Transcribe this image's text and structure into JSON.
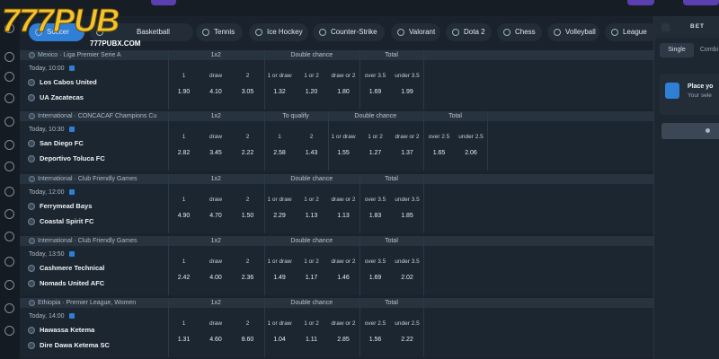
{
  "logo": {
    "title": "777PUB",
    "url": "777PUBX.COM"
  },
  "sports": [
    "Soccer",
    "Basketball",
    "Tennis",
    "Ice Hockey",
    "Counter-Strike",
    "Valorant",
    "Dota 2",
    "Chess",
    "Volleyball",
    "League"
  ],
  "betslip": {
    "title": "BET",
    "tabs": [
      "Single",
      "Combi"
    ],
    "notice_title": "Place yo",
    "notice_text": "Your sele"
  },
  "matches": [
    {
      "league": "Mexico · Liga Premier Serie A",
      "time": "Today, 10:00",
      "teams": [
        "Los Cabos United",
        "UA Zacatecas"
      ],
      "markets": [
        {
          "title": "1x2",
          "outcomes": [
            {
              "label": "1",
              "odd": "1.90"
            },
            {
              "label": "draw",
              "odd": "4.10"
            },
            {
              "label": "2",
              "odd": "3.05"
            }
          ]
        },
        {
          "title": "Double chance",
          "outcomes": [
            {
              "label": "1 or draw",
              "odd": "1.32"
            },
            {
              "label": "1 or 2",
              "odd": "1.20"
            },
            {
              "label": "draw or 2",
              "odd": "1.80"
            }
          ]
        },
        {
          "title": "Total",
          "outcomes": [
            {
              "label": "over 3.5",
              "odd": "1.69"
            },
            {
              "label": "under 3.5",
              "odd": "1.99"
            }
          ]
        }
      ]
    },
    {
      "league": "International · CONCACAF Champions Cu",
      "time": "Today, 10:30",
      "teams": [
        "San Diego FC",
        "Deportivo Toluca FC"
      ],
      "markets": [
        {
          "title": "1x2",
          "outcomes": [
            {
              "label": "1",
              "odd": "2.82"
            },
            {
              "label": "draw",
              "odd": "3.45"
            },
            {
              "label": "2",
              "odd": "2.22"
            }
          ]
        },
        {
          "title": "To qualify",
          "outcomes": [
            {
              "label": "1",
              "odd": "2.58"
            },
            {
              "label": "2",
              "odd": "1.43"
            }
          ]
        },
        {
          "title": "Double chance",
          "outcomes": [
            {
              "label": "1 or draw",
              "odd": "1.55"
            },
            {
              "label": "1 or 2",
              "odd": "1.27"
            },
            {
              "label": "draw or 2",
              "odd": "1.37"
            }
          ]
        },
        {
          "title": "Total",
          "outcomes": [
            {
              "label": "over 2.5",
              "odd": "1.65"
            },
            {
              "label": "under 2.5",
              "odd": "2.06"
            }
          ]
        }
      ]
    },
    {
      "league": "International · Club Friendly Games",
      "time": "Today, 12:00",
      "teams": [
        "Ferrymead Bays",
        "Coastal Spirit FC"
      ],
      "markets": [
        {
          "title": "1x2",
          "outcomes": [
            {
              "label": "1",
              "odd": "4.90"
            },
            {
              "label": "draw",
              "odd": "4.70"
            },
            {
              "label": "2",
              "odd": "1.50"
            }
          ]
        },
        {
          "title": "Double chance",
          "outcomes": [
            {
              "label": "1 or draw",
              "odd": "2.29"
            },
            {
              "label": "1 or 2",
              "odd": "1.13"
            },
            {
              "label": "draw or 2",
              "odd": "1.13"
            }
          ]
        },
        {
          "title": "Total",
          "outcomes": [
            {
              "label": "over 3.5",
              "odd": "1.83"
            },
            {
              "label": "under 3.5",
              "odd": "1.85"
            }
          ]
        }
      ]
    },
    {
      "league": "International · Club Friendly Games",
      "time": "Today, 13:50",
      "teams": [
        "Cashmere Technical",
        "Nomads United AFC"
      ],
      "markets": [
        {
          "title": "1x2",
          "outcomes": [
            {
              "label": "1",
              "odd": "2.42"
            },
            {
              "label": "draw",
              "odd": "4.00"
            },
            {
              "label": "2",
              "odd": "2.36"
            }
          ]
        },
        {
          "title": "Double chance",
          "outcomes": [
            {
              "label": "1 or draw",
              "odd": "1.49"
            },
            {
              "label": "1 or 2",
              "odd": "1.17"
            },
            {
              "label": "draw or 2",
              "odd": "1.46"
            }
          ]
        },
        {
          "title": "Total",
          "outcomes": [
            {
              "label": "over 3.5",
              "odd": "1.69"
            },
            {
              "label": "under 3.5",
              "odd": "2.02"
            }
          ]
        }
      ]
    },
    {
      "league": "Ethiopia · Premier League, Women",
      "time": "Today, 14:00",
      "teams": [
        "Hawassa Ketema",
        "Dire Dawa Ketema SC"
      ],
      "markets": [
        {
          "title": "1x2",
          "outcomes": [
            {
              "label": "1",
              "odd": "1.31"
            },
            {
              "label": "draw",
              "odd": "4.60"
            },
            {
              "label": "2",
              "odd": "8.60"
            }
          ]
        },
        {
          "title": "Double chance",
          "outcomes": [
            {
              "label": "1 or draw",
              "odd": "1.04"
            },
            {
              "label": "1 or 2",
              "odd": "1.11"
            },
            {
              "label": "draw or 2",
              "odd": "2.85"
            }
          ]
        },
        {
          "title": "Total",
          "outcomes": [
            {
              "label": "over 2.5",
              "odd": "1.56"
            },
            {
              "label": "under 2.5",
              "odd": "2.22"
            }
          ]
        }
      ]
    }
  ]
}
